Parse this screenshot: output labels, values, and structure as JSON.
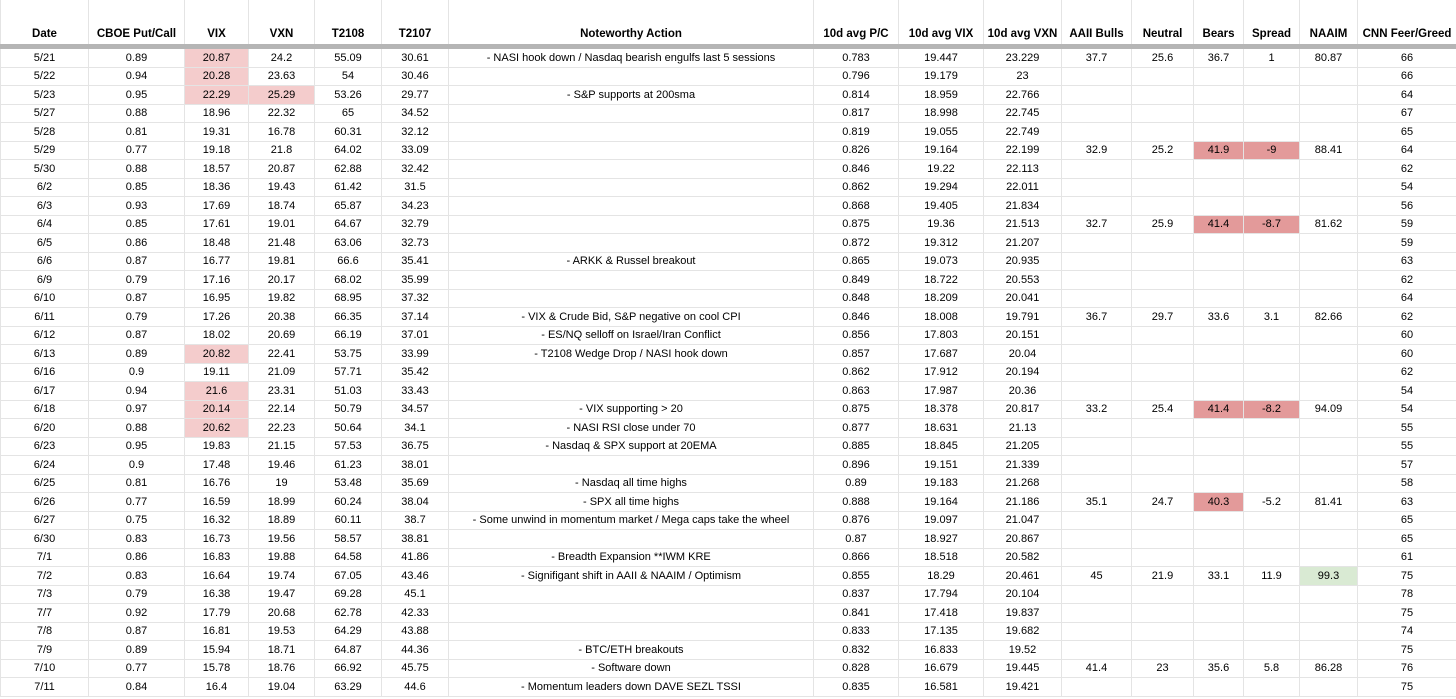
{
  "colors": {
    "pink": "#f4cccc",
    "red": "#e39a9a",
    "green": "#d9ead3"
  },
  "table": {
    "columns": [
      "Date",
      "CBOE Put/Call",
      "VIX",
      "VXN",
      "T2108",
      "T2107",
      "Noteworthy Action",
      "10d avg P/C",
      "10d avg VIX",
      "10d avg VXN",
      "AAII Bulls",
      "Neutral",
      "Bears",
      "Spread",
      "NAAIM",
      "CNN Feer/Greed"
    ],
    "rows": [
      [
        "5/21",
        "0.89",
        "20.87",
        "24.2",
        "55.09",
        "30.61",
        "- NASI hook down / Nasdaq bearish engulfs last 5 sessions",
        "0.783",
        "19.447",
        "23.229",
        "37.7",
        "25.6",
        "36.7",
        "1",
        "80.87",
        "66"
      ],
      [
        "5/22",
        "0.94",
        "20.28",
        "23.63",
        "54",
        "30.46",
        "",
        "0.796",
        "19.179",
        "23",
        "",
        "",
        "",
        "",
        "",
        "66"
      ],
      [
        "5/23",
        "0.95",
        "22.29",
        "25.29",
        "53.26",
        "29.77",
        "- S&P supports at 200sma",
        "0.814",
        "18.959",
        "22.766",
        "",
        "",
        "",
        "",
        "",
        "64"
      ],
      [
        "5/27",
        "0.88",
        "18.96",
        "22.32",
        "65",
        "34.52",
        "",
        "0.817",
        "18.998",
        "22.745",
        "",
        "",
        "",
        "",
        "",
        "67"
      ],
      [
        "5/28",
        "0.81",
        "19.31",
        "16.78",
        "60.31",
        "32.12",
        "",
        "0.819",
        "19.055",
        "22.749",
        "",
        "",
        "",
        "",
        "",
        "65"
      ],
      [
        "5/29",
        "0.77",
        "19.18",
        "21.8",
        "64.02",
        "33.09",
        "",
        "0.826",
        "19.164",
        "22.199",
        "32.9",
        "25.2",
        "41.9",
        "-9",
        "88.41",
        "64"
      ],
      [
        "5/30",
        "0.88",
        "18.57",
        "20.87",
        "62.88",
        "32.42",
        "",
        "0.846",
        "19.22",
        "22.113",
        "",
        "",
        "",
        "",
        "",
        "62"
      ],
      [
        "6/2",
        "0.85",
        "18.36",
        "19.43",
        "61.42",
        "31.5",
        "",
        "0.862",
        "19.294",
        "22.011",
        "",
        "",
        "",
        "",
        "",
        "54"
      ],
      [
        "6/3",
        "0.93",
        "17.69",
        "18.74",
        "65.87",
        "34.23",
        "",
        "0.868",
        "19.405",
        "21.834",
        "",
        "",
        "",
        "",
        "",
        "56"
      ],
      [
        "6/4",
        "0.85",
        "17.61",
        "19.01",
        "64.67",
        "32.79",
        "",
        "0.875",
        "19.36",
        "21.513",
        "32.7",
        "25.9",
        "41.4",
        "-8.7",
        "81.62",
        "59"
      ],
      [
        "6/5",
        "0.86",
        "18.48",
        "21.48",
        "63.06",
        "32.73",
        "",
        "0.872",
        "19.312",
        "21.207",
        "",
        "",
        "",
        "",
        "",
        "59"
      ],
      [
        "6/6",
        "0.87",
        "16.77",
        "19.81",
        "66.6",
        "35.41",
        "- ARKK & Russel breakout",
        "0.865",
        "19.073",
        "20.935",
        "",
        "",
        "",
        "",
        "",
        "63"
      ],
      [
        "6/9",
        "0.79",
        "17.16",
        "20.17",
        "68.02",
        "35.99",
        "",
        "0.849",
        "18.722",
        "20.553",
        "",
        "",
        "",
        "",
        "",
        "62"
      ],
      [
        "6/10",
        "0.87",
        "16.95",
        "19.82",
        "68.95",
        "37.32",
        "",
        "0.848",
        "18.209",
        "20.041",
        "",
        "",
        "",
        "",
        "",
        "64"
      ],
      [
        "6/11",
        "0.79",
        "17.26",
        "20.38",
        "66.35",
        "37.14",
        "- VIX & Crude Bid, S&P negative on cool CPI",
        "0.846",
        "18.008",
        "19.791",
        "36.7",
        "29.7",
        "33.6",
        "3.1",
        "82.66",
        "62"
      ],
      [
        "6/12",
        "0.87",
        "18.02",
        "20.69",
        "66.19",
        "37.01",
        "- ES/NQ selloff on Israel/Iran Conflict",
        "0.856",
        "17.803",
        "20.151",
        "",
        "",
        "",
        "",
        "",
        "60"
      ],
      [
        "6/13",
        "0.89",
        "20.82",
        "22.41",
        "53.75",
        "33.99",
        "- T2108 Wedge Drop / NASI hook down",
        "0.857",
        "17.687",
        "20.04",
        "",
        "",
        "",
        "",
        "",
        "60"
      ],
      [
        "6/16",
        "0.9",
        "19.11",
        "21.09",
        "57.71",
        "35.42",
        "",
        "0.862",
        "17.912",
        "20.194",
        "",
        "",
        "",
        "",
        "",
        "62"
      ],
      [
        "6/17",
        "0.94",
        "21.6",
        "23.31",
        "51.03",
        "33.43",
        "",
        "0.863",
        "17.987",
        "20.36",
        "",
        "",
        "",
        "",
        "",
        "54"
      ],
      [
        "6/18",
        "0.97",
        "20.14",
        "22.14",
        "50.79",
        "34.57",
        "- VIX supporting > 20",
        "0.875",
        "18.378",
        "20.817",
        "33.2",
        "25.4",
        "41.4",
        "-8.2",
        "94.09",
        "54"
      ],
      [
        "6/20",
        "0.88",
        "20.62",
        "22.23",
        "50.64",
        "34.1",
        "- NASI RSI close under 70",
        "0.877",
        "18.631",
        "21.13",
        "",
        "",
        "",
        "",
        "",
        "55"
      ],
      [
        "6/23",
        "0.95",
        "19.83",
        "21.15",
        "57.53",
        "36.75",
        "- Nasdaq & SPX support at 20EMA",
        "0.885",
        "18.845",
        "21.205",
        "",
        "",
        "",
        "",
        "",
        "55"
      ],
      [
        "6/24",
        "0.9",
        "17.48",
        "19.46",
        "61.23",
        "38.01",
        "",
        "0.896",
        "19.151",
        "21.339",
        "",
        "",
        "",
        "",
        "",
        "57"
      ],
      [
        "6/25",
        "0.81",
        "16.76",
        "19",
        "53.48",
        "35.69",
        "- Nasdaq all time highs",
        "0.89",
        "19.183",
        "21.268",
        "",
        "",
        "",
        "",
        "",
        "58"
      ],
      [
        "6/26",
        "0.77",
        "16.59",
        "18.99",
        "60.24",
        "38.04",
        "- SPX all time highs",
        "0.888",
        "19.164",
        "21.186",
        "35.1",
        "24.7",
        "40.3",
        "-5.2",
        "81.41",
        "63"
      ],
      [
        "6/27",
        "0.75",
        "16.32",
        "18.89",
        "60.11",
        "38.7",
        "- Some unwind in momentum market / Mega caps take the wheel",
        "0.876",
        "19.097",
        "21.047",
        "",
        "",
        "",
        "",
        "",
        "65"
      ],
      [
        "6/30",
        "0.83",
        "16.73",
        "19.56",
        "58.57",
        "38.81",
        "",
        "0.87",
        "18.927",
        "20.867",
        "",
        "",
        "",
        "",
        "",
        "65"
      ],
      [
        "7/1",
        "0.86",
        "16.83",
        "19.88",
        "64.58",
        "41.86",
        "- Breadth Expansion **IWM KRE",
        "0.866",
        "18.518",
        "20.582",
        "",
        "",
        "",
        "",
        "",
        "61"
      ],
      [
        "7/2",
        "0.83",
        "16.64",
        "19.74",
        "67.05",
        "43.46",
        "- Signifigant shift in AAII & NAAIM / Optimism",
        "0.855",
        "18.29",
        "20.461",
        "45",
        "21.9",
        "33.1",
        "11.9",
        "99.3",
        "75"
      ],
      [
        "7/3",
        "0.79",
        "16.38",
        "19.47",
        "69.28",
        "45.1",
        "",
        "0.837",
        "17.794",
        "20.104",
        "",
        "",
        "",
        "",
        "",
        "78"
      ],
      [
        "7/7",
        "0.92",
        "17.79",
        "20.68",
        "62.78",
        "42.33",
        "",
        "0.841",
        "17.418",
        "19.837",
        "",
        "",
        "",
        "",
        "",
        "75"
      ],
      [
        "7/8",
        "0.87",
        "16.81",
        "19.53",
        "64.29",
        "43.88",
        "",
        "0.833",
        "17.135",
        "19.682",
        "",
        "",
        "",
        "",
        "",
        "74"
      ],
      [
        "7/9",
        "0.89",
        "15.94",
        "18.71",
        "64.87",
        "44.36",
        "- BTC/ETH breakouts",
        "0.832",
        "16.833",
        "19.52",
        "",
        "",
        "",
        "",
        "",
        "75"
      ],
      [
        "7/10",
        "0.77",
        "15.78",
        "18.76",
        "66.92",
        "45.75",
        "- Software down",
        "0.828",
        "16.679",
        "19.445",
        "41.4",
        "23",
        "35.6",
        "5.8",
        "86.28",
        "76"
      ],
      [
        "7/11",
        "0.84",
        "16.4",
        "19.04",
        "63.29",
        "44.6",
        "- Momentum leaders down DAVE SEZL TSSI",
        "0.835",
        "16.581",
        "19.421",
        "",
        "",
        "",
        "",
        "",
        "75"
      ]
    ],
    "highlights": [
      {
        "r": 0,
        "c": 2,
        "color": "pink"
      },
      {
        "r": 1,
        "c": 2,
        "color": "pink"
      },
      {
        "r": 2,
        "c": 2,
        "color": "pink"
      },
      {
        "r": 2,
        "c": 3,
        "color": "pink"
      },
      {
        "r": 16,
        "c": 2,
        "color": "pink"
      },
      {
        "r": 18,
        "c": 2,
        "color": "pink"
      },
      {
        "r": 19,
        "c": 2,
        "color": "pink"
      },
      {
        "r": 20,
        "c": 2,
        "color": "pink"
      },
      {
        "r": 5,
        "c": 12,
        "color": "red"
      },
      {
        "r": 5,
        "c": 13,
        "color": "red"
      },
      {
        "r": 9,
        "c": 12,
        "color": "red"
      },
      {
        "r": 9,
        "c": 13,
        "color": "red"
      },
      {
        "r": 19,
        "c": 12,
        "color": "red"
      },
      {
        "r": 19,
        "c": 13,
        "color": "red"
      },
      {
        "r": 24,
        "c": 12,
        "color": "red"
      },
      {
        "r": 28,
        "c": 14,
        "color": "green"
      }
    ]
  }
}
